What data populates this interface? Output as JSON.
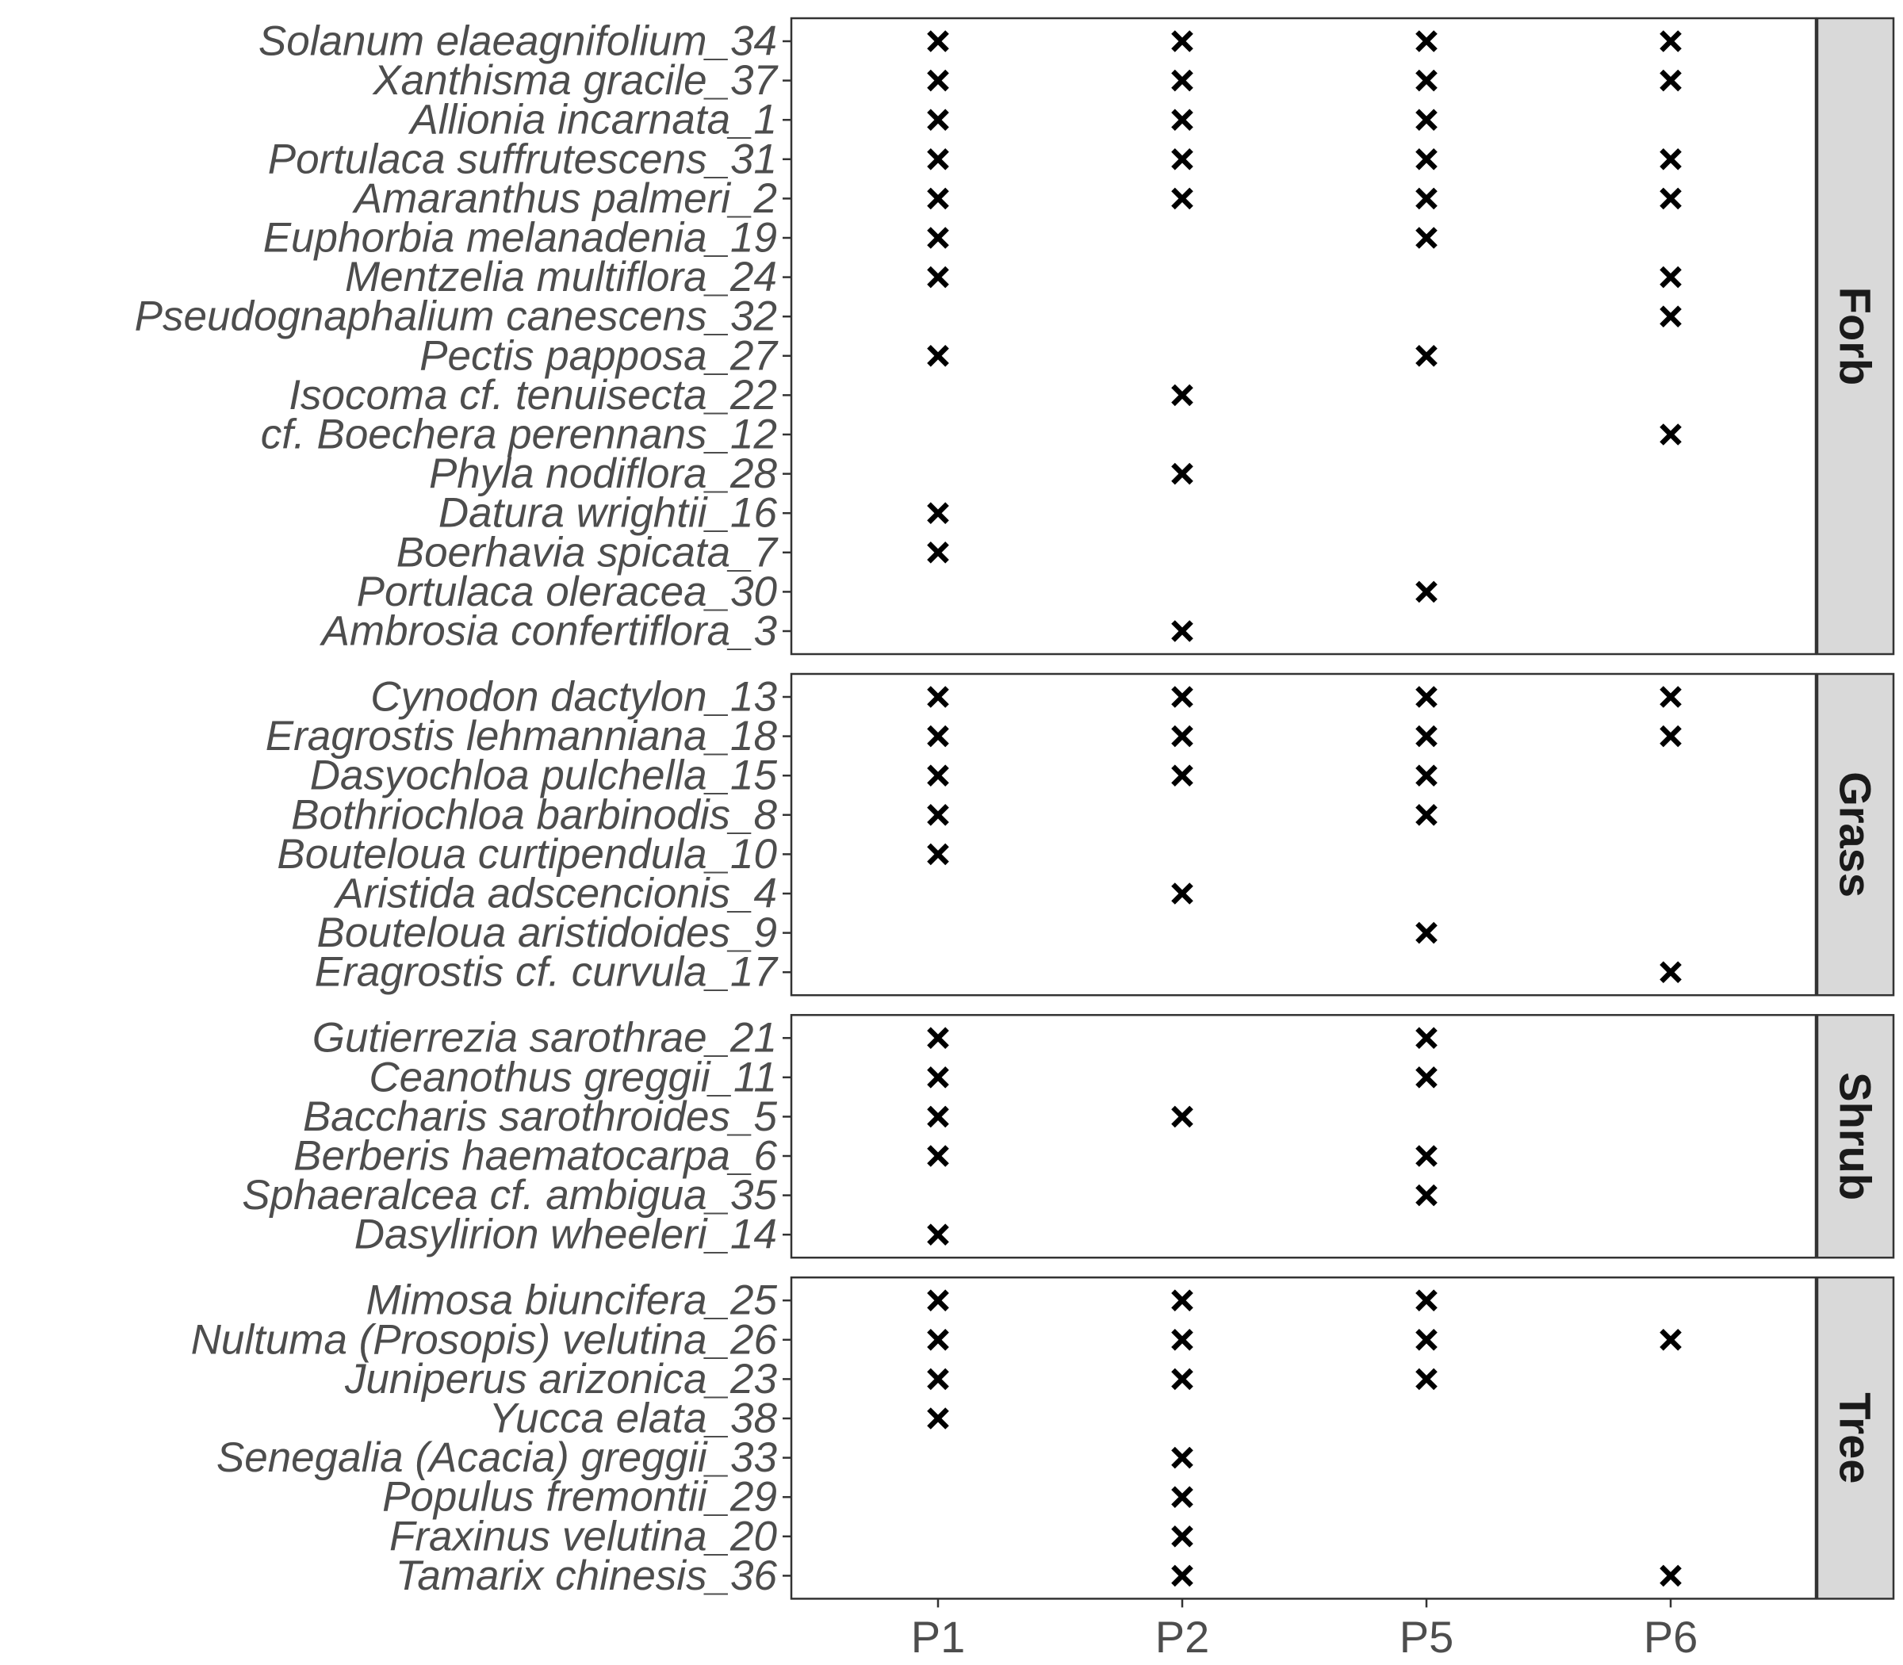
{
  "chart_data": {
    "type": "scatter",
    "marker": "cross",
    "marker_color": "#000000",
    "strip_color": "#d9d9d9",
    "x_categories": [
      "P1",
      "P2",
      "P5",
      "P6"
    ],
    "panels": [
      {
        "facet": "Forb",
        "rows": [
          {
            "species": "Solanum elaeagnifolium_34",
            "present": [
              "P1",
              "P2",
              "P5",
              "P6"
            ]
          },
          {
            "species": "Xanthisma gracile_37",
            "present": [
              "P1",
              "P2",
              "P5",
              "P6"
            ]
          },
          {
            "species": "Allionia incarnata_1",
            "present": [
              "P1",
              "P2",
              "P5"
            ]
          },
          {
            "species": "Portulaca suffrutescens_31",
            "present": [
              "P1",
              "P2",
              "P5",
              "P6"
            ]
          },
          {
            "species": "Amaranthus palmeri_2",
            "present": [
              "P1",
              "P2",
              "P5",
              "P6"
            ]
          },
          {
            "species": "Euphorbia melanadenia_19",
            "present": [
              "P1",
              "P5"
            ]
          },
          {
            "species": "Mentzelia multiflora_24",
            "present": [
              "P1",
              "P6"
            ]
          },
          {
            "species": "Pseudognaphalium canescens_32",
            "present": [
              "P6"
            ]
          },
          {
            "species": "Pectis papposa_27",
            "present": [
              "P1",
              "P5"
            ]
          },
          {
            "species": "Isocoma cf. tenuisecta_22",
            "present": [
              "P2"
            ]
          },
          {
            "species": "cf. Boechera perennans_12",
            "present": [
              "P6"
            ]
          },
          {
            "species": "Phyla nodiflora_28",
            "present": [
              "P2"
            ]
          },
          {
            "species": "Datura wrightii_16",
            "present": [
              "P1"
            ]
          },
          {
            "species": "Boerhavia spicata_7",
            "present": [
              "P1"
            ]
          },
          {
            "species": "Portulaca oleracea_30",
            "present": [
              "P5"
            ]
          },
          {
            "species": "Ambrosia confertiflora_3",
            "present": [
              "P2"
            ]
          }
        ]
      },
      {
        "facet": "Grass",
        "rows": [
          {
            "species": "Cynodon dactylon_13",
            "present": [
              "P1",
              "P2",
              "P5",
              "P6"
            ]
          },
          {
            "species": "Eragrostis lehmanniana_18",
            "present": [
              "P1",
              "P2",
              "P5",
              "P6"
            ]
          },
          {
            "species": "Dasyochloa pulchella_15",
            "present": [
              "P1",
              "P2",
              "P5"
            ]
          },
          {
            "species": "Bothriochloa barbinodis_8",
            "present": [
              "P1",
              "P5"
            ]
          },
          {
            "species": "Bouteloua curtipendula_10",
            "present": [
              "P1"
            ]
          },
          {
            "species": "Aristida adscencionis_4",
            "present": [
              "P2"
            ]
          },
          {
            "species": "Bouteloua aristidoides_9",
            "present": [
              "P5"
            ]
          },
          {
            "species": "Eragrostis cf. curvula_17",
            "present": [
              "P6"
            ]
          }
        ]
      },
      {
        "facet": "Shrub",
        "rows": [
          {
            "species": "Gutierrezia sarothrae_21",
            "present": [
              "P1",
              "P5"
            ]
          },
          {
            "species": "Ceanothus greggii_11",
            "present": [
              "P1",
              "P5"
            ]
          },
          {
            "species": "Baccharis sarothroides_5",
            "present": [
              "P1",
              "P2"
            ]
          },
          {
            "species": "Berberis haematocarpa_6",
            "present": [
              "P1",
              "P5"
            ]
          },
          {
            "species": "Sphaeralcea cf. ambigua_35",
            "present": [
              "P5"
            ]
          },
          {
            "species": "Dasylirion wheeleri_14",
            "present": [
              "P1"
            ]
          }
        ]
      },
      {
        "facet": "Tree",
        "rows": [
          {
            "species": "Mimosa biuncifera_25",
            "present": [
              "P1",
              "P2",
              "P5"
            ]
          },
          {
            "species": "Nultuma (Prosopis) velutina_26",
            "present": [
              "P1",
              "P2",
              "P5",
              "P6"
            ]
          },
          {
            "species": "Juniperus arizonica_23",
            "present": [
              "P1",
              "P2",
              "P5"
            ]
          },
          {
            "species": "Yucca elata_38",
            "present": [
              "P1"
            ]
          },
          {
            "species": "Senegalia (Acacia) greggii_33",
            "present": [
              "P2"
            ]
          },
          {
            "species": "Populus fremontii_29",
            "present": [
              "P2"
            ]
          },
          {
            "species": "Fraxinus velutina_20",
            "present": [
              "P2"
            ]
          },
          {
            "species": "Tamarix chinesis_36",
            "present": [
              "P2",
              "P6"
            ]
          }
        ]
      }
    ],
    "grid": false,
    "legend": "none"
  }
}
